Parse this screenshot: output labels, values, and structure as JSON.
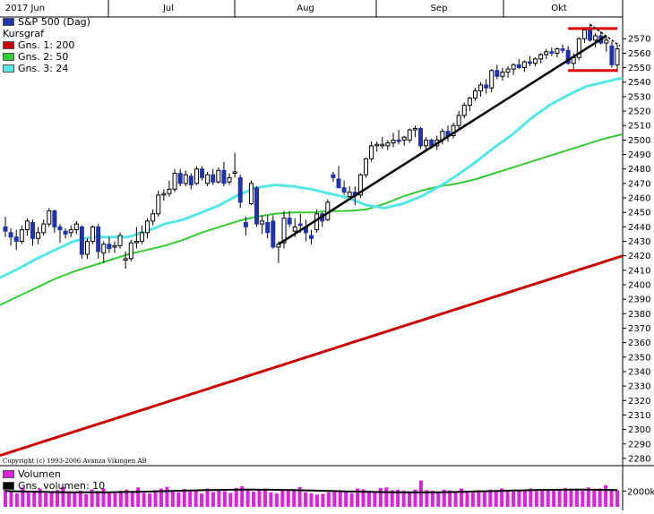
{
  "chart_data": {
    "type": "candlestick",
    "months": [
      "2017 Jun",
      "Jul",
      "Aug",
      "Sep",
      "Okt"
    ],
    "ylim": [
      2275,
      2585
    ],
    "yticks": [
      2280,
      2290,
      2300,
      2310,
      2320,
      2330,
      2340,
      2350,
      2360,
      2370,
      2380,
      2390,
      2400,
      2410,
      2420,
      2430,
      2440,
      2450,
      2460,
      2470,
      2480,
      2490,
      2500,
      2510,
      2520,
      2530,
      2540,
      2550,
      2560,
      2570
    ],
    "legend": {
      "title": "S&P 500 (Dag)",
      "kursgraf": "Kursgraf",
      "items": [
        {
          "label": "Gns. 1: 200",
          "color": "#cc0000"
        },
        {
          "label": "Gns. 2: 50",
          "color": "#33cc33"
        },
        {
          "label": "Gns. 3: 24",
          "color": "#55e6e6"
        }
      ],
      "series_color": "#2233aa"
    },
    "volume": {
      "label": "Volumen",
      "avg_label": "Gns. volumen: 10",
      "tick": "2000k",
      "color": "#dd22dd"
    },
    "copyright": "Copyright (c) 1993-2006 Avanza Vikingen AB",
    "ohlc": [
      [
        2440,
        2447,
        2433,
        2437
      ],
      [
        2436,
        2439,
        2427,
        2433
      ],
      [
        2433,
        2438,
        2424,
        2430
      ],
      [
        2430,
        2441,
        2428,
        2438
      ],
      [
        2438,
        2446,
        2434,
        2444
      ],
      [
        2443,
        2445,
        2427,
        2432
      ],
      [
        2432,
        2440,
        2428,
        2436
      ],
      [
        2436,
        2445,
        2434,
        2442
      ],
      [
        2442,
        2453,
        2440,
        2451
      ],
      [
        2451,
        2452,
        2436,
        2440
      ],
      [
        2440,
        2442,
        2429,
        2438
      ],
      [
        2437,
        2439,
        2432,
        2435
      ],
      [
        2436,
        2441,
        2433,
        2438
      ],
      [
        2438,
        2444,
        2435,
        2442
      ],
      [
        2440,
        2441,
        2418,
        2421
      ],
      [
        2421,
        2432,
        2418,
        2430
      ],
      [
        2430,
        2441,
        2428,
        2440
      ],
      [
        2440,
        2442,
        2418,
        2423
      ],
      [
        2422,
        2430,
        2415,
        2428
      ],
      [
        2428,
        2433,
        2422,
        2425
      ],
      [
        2426,
        2430,
        2422,
        2427
      ],
      [
        2427,
        2436,
        2425,
        2434
      ],
      [
        2417,
        2423,
        2411,
        2418
      ],
      [
        2418,
        2431,
        2416,
        2429
      ],
      [
        2429,
        2440,
        2425,
        2430
      ],
      [
        2430,
        2441,
        2428,
        2436
      ],
      [
        2436,
        2446,
        2432,
        2444
      ],
      [
        2444,
        2452,
        2441,
        2449
      ],
      [
        2449,
        2465,
        2447,
        2462
      ],
      [
        2462,
        2466,
        2458,
        2463
      ],
      [
        2463,
        2472,
        2461,
        2466
      ],
      [
        2466,
        2480,
        2464,
        2477
      ],
      [
        2477,
        2480,
        2468,
        2470
      ],
      [
        2470,
        2479,
        2468,
        2476
      ],
      [
        2475,
        2477,
        2466,
        2469
      ],
      [
        2470,
        2482,
        2469,
        2480
      ],
      [
        2480,
        2482,
        2472,
        2474
      ],
      [
        2470,
        2478,
        2468,
        2476
      ],
      [
        2476,
        2480,
        2469,
        2471
      ],
      [
        2471,
        2481,
        2470,
        2479
      ],
      [
        2479,
        2485,
        2468,
        2470
      ],
      [
        2471,
        2477,
        2469,
        2474
      ],
      [
        2477,
        2491,
        2474,
        2478
      ],
      [
        2474,
        2476,
        2453,
        2457
      ],
      [
        2443,
        2447,
        2434,
        2440
      ],
      [
        2456,
        2472,
        2455,
        2470
      ],
      [
        2467,
        2468,
        2440,
        2442
      ],
      [
        2442,
        2448,
        2435,
        2444
      ],
      [
        2443,
        2448,
        2432,
        2436
      ],
      [
        2444,
        2448,
        2425,
        2426
      ],
      [
        2426,
        2430,
        2415,
        2428
      ],
      [
        2429,
        2451,
        2425,
        2446
      ],
      [
        2446,
        2451,
        2440,
        2442
      ],
      [
        2437,
        2446,
        2433,
        2440
      ],
      [
        2442,
        2449,
        2436,
        2441
      ],
      [
        2440,
        2445,
        2430,
        2436
      ],
      [
        2434,
        2438,
        2428,
        2432
      ],
      [
        2438,
        2452,
        2436,
        2449
      ],
      [
        2449,
        2450,
        2440,
        2444
      ],
      [
        2445,
        2459,
        2444,
        2457
      ],
      [
        2476,
        2478,
        2471,
        2474
      ],
      [
        2473,
        2482,
        2467,
        2467
      ],
      [
        2467,
        2472,
        2462,
        2464
      ],
      [
        2461,
        2468,
        2460,
        2464
      ],
      [
        2464,
        2468,
        2455,
        2462
      ],
      [
        2462,
        2477,
        2460,
        2476
      ],
      [
        2476,
        2488,
        2474,
        2487
      ],
      [
        2487,
        2499,
        2485,
        2496
      ],
      [
        2496,
        2499,
        2492,
        2497
      ],
      [
        2496,
        2502,
        2494,
        2497
      ],
      [
        2496,
        2500,
        2493,
        2498
      ],
      [
        2498,
        2505,
        2495,
        2500
      ],
      [
        2500,
        2507,
        2497,
        2499
      ],
      [
        2500,
        2503,
        2496,
        2502
      ],
      [
        2500,
        2508,
        2498,
        2507
      ],
      [
        2507,
        2510,
        2502,
        2508
      ],
      [
        2508,
        2509,
        2494,
        2496
      ],
      [
        2496,
        2502,
        2492,
        2500
      ],
      [
        2500,
        2501,
        2494,
        2496
      ],
      [
        2496,
        2503,
        2493,
        2500
      ],
      [
        2500,
        2508,
        2497,
        2506
      ],
      [
        2506,
        2510,
        2499,
        2503
      ],
      [
        2503,
        2512,
        2501,
        2510
      ],
      [
        2510,
        2520,
        2508,
        2517
      ],
      [
        2517,
        2526,
        2515,
        2524
      ],
      [
        2524,
        2530,
        2520,
        2529
      ],
      [
        2529,
        2536,
        2527,
        2534
      ],
      [
        2534,
        2540,
        2530,
        2538
      ],
      [
        2538,
        2542,
        2532,
        2536
      ],
      [
        2536,
        2549,
        2533,
        2548
      ],
      [
        2548,
        2552,
        2542,
        2544
      ],
      [
        2544,
        2550,
        2541,
        2547
      ],
      [
        2547,
        2551,
        2543,
        2549
      ],
      [
        2549,
        2553,
        2545,
        2552
      ],
      [
        2552,
        2556,
        2549,
        2550
      ],
      [
        2550,
        2555,
        2547,
        2554
      ],
      [
        2554,
        2558,
        2551,
        2553
      ],
      [
        2553,
        2557,
        2551,
        2556
      ],
      [
        2556,
        2560,
        2553,
        2559
      ],
      [
        2559,
        2563,
        2556,
        2561
      ],
      [
        2561,
        2564,
        2558,
        2560
      ],
      [
        2560,
        2564,
        2557,
        2563
      ],
      [
        2563,
        2566,
        2560,
        2562
      ],
      [
        2562,
        2565,
        2552,
        2553
      ],
      [
        2553,
        2560,
        2549,
        2557
      ],
      [
        2557,
        2571,
        2555,
        2570
      ],
      [
        2570,
        2578,
        2567,
        2576
      ],
      [
        2576,
        2580,
        2568,
        2569
      ],
      [
        2569,
        2574,
        2564,
        2572
      ],
      [
        2572,
        2575,
        2566,
        2567
      ],
      [
        2567,
        2572,
        2561,
        2569
      ],
      [
        2565,
        2568,
        2550,
        2552
      ],
      [
        2552,
        2566,
        2547,
        2563
      ]
    ],
    "ma200": [
      2282,
      2285,
      2288,
      2291,
      2294,
      2297,
      2300,
      2303,
      2306,
      2309,
      2312,
      2315,
      2318,
      2321,
      2324,
      2327,
      2330,
      2333,
      2336,
      2339,
      2342,
      2345,
      2348,
      2351,
      2354,
      2357,
      2360,
      2363,
      2366,
      2369,
      2372,
      2375,
      2378,
      2381,
      2384,
      2387,
      2390,
      2393,
      2396,
      2399,
      2402,
      2405,
      2408,
      2411,
      2414,
      2417,
      2420
    ],
    "ma50": [
      2386,
      2392,
      2398,
      2404,
      2409,
      2413,
      2417,
      2421,
      2424,
      2427,
      2431,
      2436,
      2440,
      2444,
      2447,
      2449,
      2450,
      2450,
      2451,
      2451,
      2452,
      2456,
      2461,
      2465,
      2468,
      2470,
      2473,
      2477,
      2481,
      2485,
      2489,
      2493,
      2497,
      2501,
      2504
    ],
    "ma24": [
      2405,
      2411,
      2418,
      2424,
      2430,
      2433,
      2433,
      2433,
      2437,
      2442,
      2445,
      2450,
      2455,
      2462,
      2467,
      2469,
      2468,
      2466,
      2463,
      2460,
      2455,
      2453,
      2456,
      2461,
      2468,
      2476,
      2485,
      2495,
      2504,
      2515,
      2524,
      2531,
      2537,
      2540,
      2543
    ],
    "volume_values": [
      0.62,
      0.55,
      0.48,
      0.7,
      0.52,
      0.58,
      0.66,
      0.49,
      0.54,
      0.61,
      0.72,
      0.55,
      0.5,
      0.58,
      0.46,
      0.63,
      0.57,
      0.66,
      0.52,
      0.49,
      0.58,
      0.62,
      0.55,
      0.7,
      0.51,
      0.48,
      0.6,
      0.66,
      0.72,
      0.58,
      0.52,
      0.64,
      0.55,
      0.59,
      0.48,
      0.66,
      0.53,
      0.61,
      0.57,
      0.5,
      0.68,
      0.74,
      0.62,
      0.55,
      0.58,
      0.66,
      0.52,
      0.48,
      0.6,
      0.57,
      0.63,
      0.71,
      0.52,
      0.49,
      0.44,
      0.47,
      0.52,
      0.55,
      0.6,
      0.56,
      0.49,
      0.66,
      0.63,
      0.58,
      0.55,
      0.68,
      0.7,
      0.6,
      0.62,
      0.58,
      0.55,
      0.62,
      0.95,
      0.6,
      0.58,
      0.55,
      0.62,
      0.59,
      0.55,
      0.66,
      0.58,
      0.52,
      0.6,
      0.55,
      0.62,
      0.58,
      0.66,
      0.6,
      0.55,
      0.58,
      0.62,
      0.66,
      0.56,
      0.6,
      0.58,
      0.64,
      0.62,
      0.68,
      0.6,
      0.66,
      0.58,
      0.7,
      0.62,
      0.66,
      0.78,
      0.64,
      0.6
    ]
  }
}
